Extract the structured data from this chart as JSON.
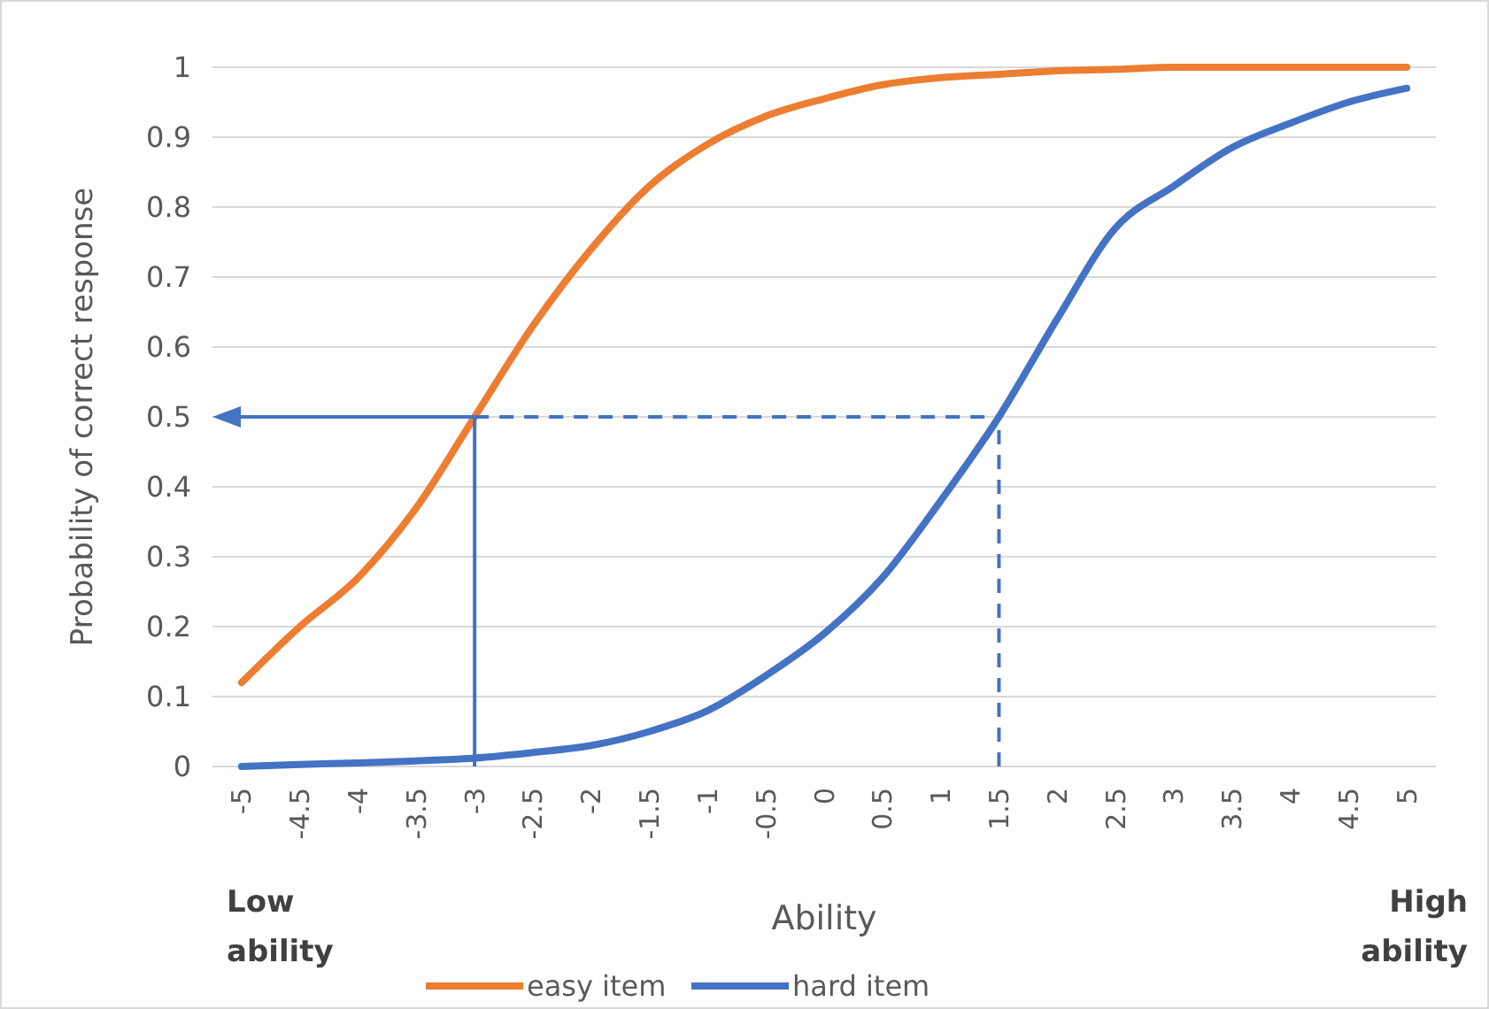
{
  "chart_data": {
    "type": "line",
    "xlabel": "Ability",
    "ylabel": "Probability of correct response",
    "x": [
      -5,
      -4.5,
      -4,
      -3.5,
      -3,
      -2.5,
      -2,
      -1.5,
      -1,
      -0.5,
      0,
      0.5,
      1,
      1.5,
      2,
      2.5,
      3,
      3.5,
      4,
      4.5,
      5
    ],
    "xlim": [
      -5.25,
      5.25
    ],
    "xticks": [
      -5,
      -4.5,
      -4,
      -3.5,
      -3,
      -2.5,
      -2,
      -1.5,
      -1,
      -0.5,
      0,
      0.5,
      1,
      1.5,
      2,
      2.5,
      3,
      3.5,
      4,
      4.5,
      5
    ],
    "ylim": [
      0,
      1
    ],
    "yticks": [
      0,
      0.1,
      0.2,
      0.3,
      0.4,
      0.5,
      0.6,
      0.7,
      0.8,
      0.9,
      1
    ],
    "series": [
      {
        "name": "easy item",
        "color": "#ed7d31",
        "values": [
          0.12,
          0.2,
          0.27,
          0.37,
          0.5,
          0.63,
          0.74,
          0.83,
          0.89,
          0.93,
          0.955,
          0.975,
          0.985,
          0.99,
          0.995,
          0.997,
          1,
          1,
          1,
          1,
          1
        ]
      },
      {
        "name": "hard item",
        "color": "#4472c4",
        "values": [
          0,
          0.003,
          0.005,
          0.008,
          0.012,
          0.02,
          0.03,
          0.05,
          0.08,
          0.13,
          0.19,
          0.27,
          0.38,
          0.5,
          0.64,
          0.77,
          0.83,
          0.885,
          0.92,
          0.95,
          0.97
        ]
      }
    ],
    "ref_lines": [
      {
        "axis": "y",
        "value": 0.5,
        "color": "#4472c4",
        "line_style": "dashed"
      },
      {
        "axis": "x",
        "value": -3,
        "color": "#4472c4",
        "line_style": "solid"
      },
      {
        "axis": "x",
        "value": 1.5,
        "color": "#4472c4",
        "line_style": "dashed"
      }
    ],
    "annotations": [
      "Low\nability",
      "High\nability"
    ],
    "grid": "y",
    "legend": "bottom",
    "marker": "none",
    "line_style": "solid"
  }
}
